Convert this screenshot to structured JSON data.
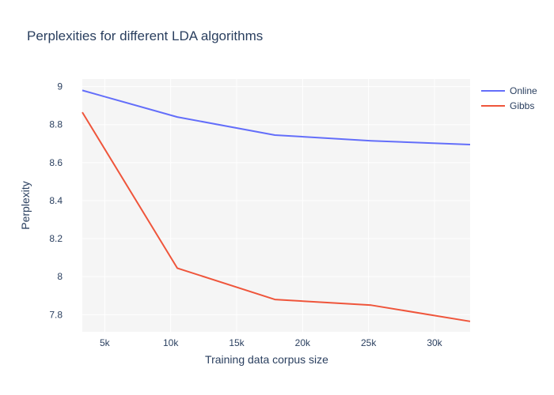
{
  "chart_data": {
    "type": "line",
    "title": "Perplexities for different LDA algorithms",
    "xlabel": "Training data corpus size",
    "ylabel": "Perplexity",
    "xlim": [
      3300,
      32700
    ],
    "ylim": [
      7.71,
      9.04
    ],
    "x_ticks": [
      5000,
      10000,
      15000,
      20000,
      25000,
      30000
    ],
    "x_tick_labels": [
      "5k",
      "10k",
      "15k",
      "20k",
      "25k",
      "30k"
    ],
    "y_ticks": [
      7.8,
      8.0,
      8.2,
      8.4,
      8.6,
      8.8,
      9.0
    ],
    "y_tick_labels": [
      "7.8",
      "8",
      "8.2",
      "8.4",
      "8.6",
      "8.8",
      "9"
    ],
    "grid": true,
    "plot_bgcolor": "#f5f5f5",
    "legend_position": "top-right",
    "series": [
      {
        "name": "Online",
        "color": "#636efa",
        "x": [
          3300,
          10500,
          17900,
          25200,
          32700
        ],
        "y": [
          8.98,
          8.84,
          8.745,
          8.715,
          8.695
        ]
      },
      {
        "name": "Gibbs",
        "color": "#ef553b",
        "x": [
          3300,
          10500,
          17900,
          25200,
          32700
        ],
        "y": [
          8.865,
          8.045,
          7.88,
          7.85,
          7.765
        ]
      }
    ]
  }
}
